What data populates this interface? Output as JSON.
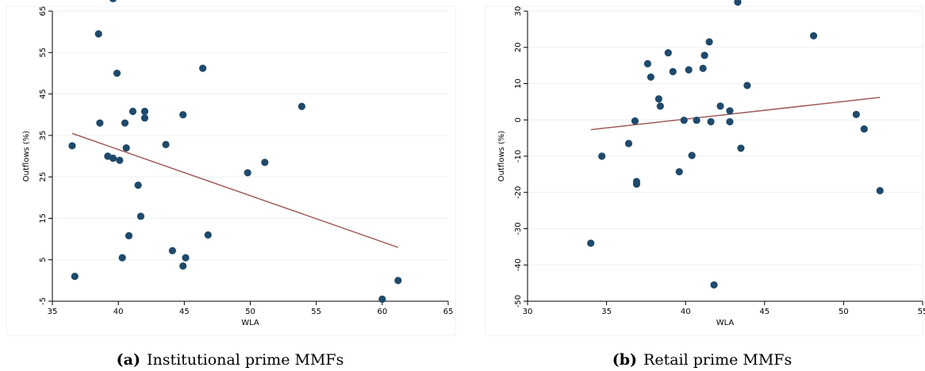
{
  "chart_data": [
    {
      "type": "scatter",
      "caption_tag": "(a)",
      "caption_text": "Institutional prime MMFs",
      "xlabel": "WLA",
      "ylabel": "Outflows (%)",
      "xlim": [
        35,
        65
      ],
      "ylim": [
        -5,
        65
      ],
      "xticks": [
        35,
        40,
        45,
        50,
        55,
        60,
        65
      ],
      "yticks": [
        -5,
        5,
        15,
        25,
        35,
        45,
        55,
        65
      ],
      "grid": true,
      "points": [
        {
          "x": 36.5,
          "y": 32.5
        },
        {
          "x": 36.7,
          "y": 1
        },
        {
          "x": 38.5,
          "y": 59.5
        },
        {
          "x": 38.6,
          "y": 38
        },
        {
          "x": 39.2,
          "y": 30
        },
        {
          "x": 39.6,
          "y": 68
        },
        {
          "x": 39.6,
          "y": 29.5
        },
        {
          "x": 39.9,
          "y": 50
        },
        {
          "x": 40.1,
          "y": 29
        },
        {
          "x": 40.3,
          "y": 5.5
        },
        {
          "x": 40.5,
          "y": 38
        },
        {
          "x": 40.6,
          "y": 32
        },
        {
          "x": 40.8,
          "y": 10.8
        },
        {
          "x": 41.1,
          "y": 40.8
        },
        {
          "x": 41.5,
          "y": 23
        },
        {
          "x": 41.7,
          "y": 15.5
        },
        {
          "x": 42.0,
          "y": 39.2
        },
        {
          "x": 42.0,
          "y": 40.8
        },
        {
          "x": 43.6,
          "y": 32.8
        },
        {
          "x": 44.1,
          "y": 7.2
        },
        {
          "x": 44.9,
          "y": 3.5
        },
        {
          "x": 44.9,
          "y": 40
        },
        {
          "x": 45.1,
          "y": 5.5
        },
        {
          "x": 46.4,
          "y": 51.2
        },
        {
          "x": 46.8,
          "y": 11
        },
        {
          "x": 49.8,
          "y": 26
        },
        {
          "x": 51.1,
          "y": 28.5
        },
        {
          "x": 53.9,
          "y": 42
        },
        {
          "x": 60.0,
          "y": -4.5
        },
        {
          "x": 61.2,
          "y": 0
        }
      ],
      "fit": {
        "x": [
          36.5,
          61.2
        ],
        "y": [
          35.5,
          8
        ]
      }
    },
    {
      "type": "scatter",
      "caption_tag": "(b)",
      "caption_text": "Retail prime MMFs",
      "xlabel": "WLA",
      "ylabel": "Outflows (%)",
      "xlim": [
        30,
        55
      ],
      "ylim": [
        -50,
        30
      ],
      "xticks": [
        30,
        35,
        40,
        45,
        50,
        55
      ],
      "yticks": [
        -50,
        -40,
        -30,
        -20,
        -10,
        0,
        10,
        20,
        30
      ],
      "grid": true,
      "points": [
        {
          "x": 34.0,
          "y": -34
        },
        {
          "x": 34.7,
          "y": -10
        },
        {
          "x": 36.4,
          "y": -6.5
        },
        {
          "x": 36.8,
          "y": -0.3
        },
        {
          "x": 36.9,
          "y": -17
        },
        {
          "x": 36.9,
          "y": -17.7
        },
        {
          "x": 37.6,
          "y": 15.5
        },
        {
          "x": 37.8,
          "y": 11.8
        },
        {
          "x": 38.3,
          "y": 5.8
        },
        {
          "x": 38.4,
          "y": 3.8
        },
        {
          "x": 38.9,
          "y": 18.5
        },
        {
          "x": 39.2,
          "y": 13.3
        },
        {
          "x": 39.6,
          "y": -14.3
        },
        {
          "x": 39.9,
          "y": -0.1
        },
        {
          "x": 40.2,
          "y": 13.8
        },
        {
          "x": 40.4,
          "y": -9.8
        },
        {
          "x": 40.7,
          "y": -0.1
        },
        {
          "x": 41.1,
          "y": 14.2
        },
        {
          "x": 41.2,
          "y": 17.8
        },
        {
          "x": 41.5,
          "y": 21.5
        },
        {
          "x": 41.6,
          "y": -0.5
        },
        {
          "x": 41.8,
          "y": -45.5
        },
        {
          "x": 42.2,
          "y": 3.8
        },
        {
          "x": 42.8,
          "y": -0.5
        },
        {
          "x": 42.8,
          "y": 2.5
        },
        {
          "x": 43.3,
          "y": 32.5
        },
        {
          "x": 43.5,
          "y": -7.8
        },
        {
          "x": 43.9,
          "y": 9.5
        },
        {
          "x": 48.1,
          "y": 23.2
        },
        {
          "x": 50.8,
          "y": 1.5
        },
        {
          "x": 51.3,
          "y": -2.5
        },
        {
          "x": 52.3,
          "y": -19.5
        }
      ],
      "fit": {
        "x": [
          34.0,
          52.3
        ],
        "y": [
          -2.7,
          6.2
        ]
      }
    }
  ]
}
